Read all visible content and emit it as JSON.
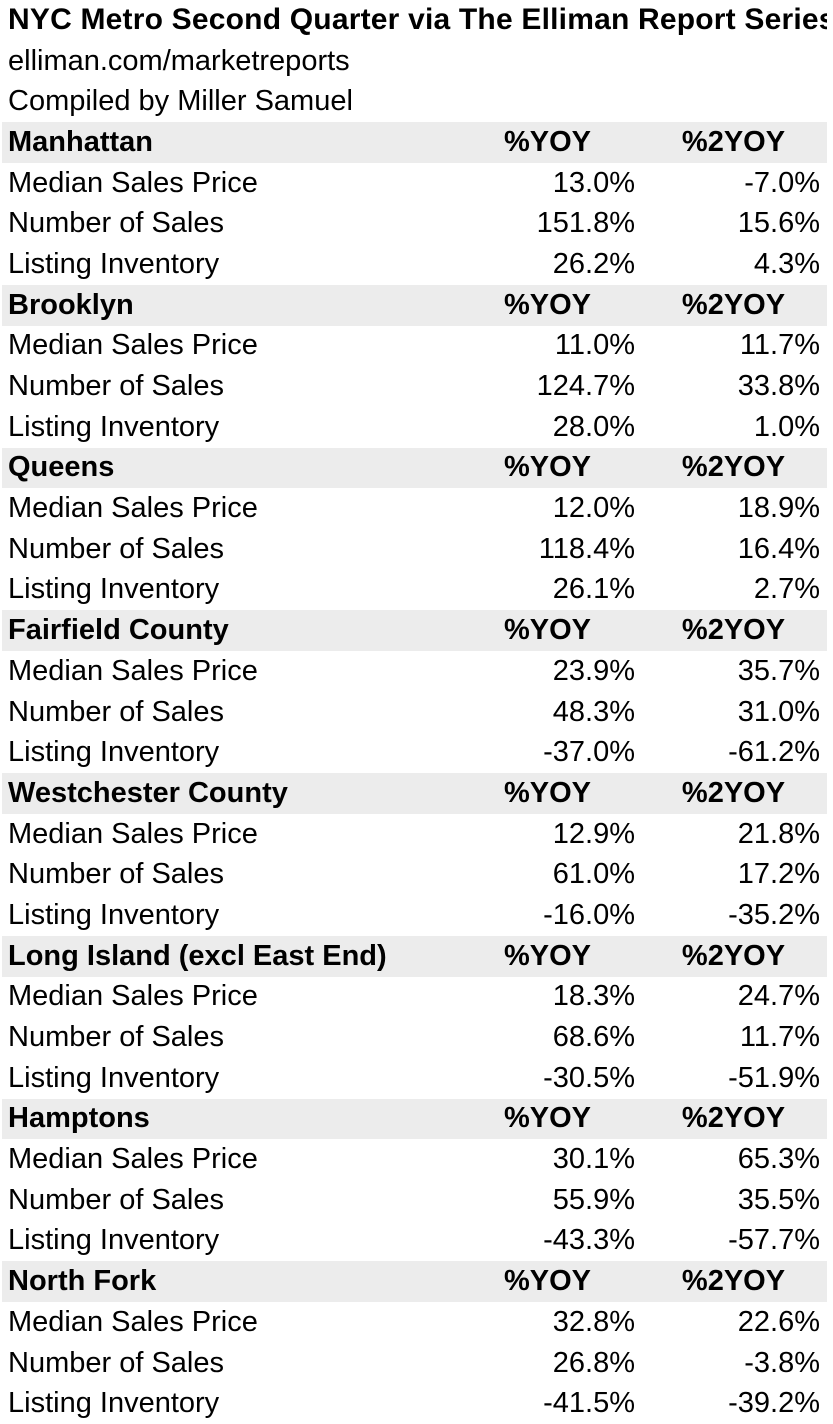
{
  "header": {
    "title": "NYC Metro Second Quarter via The Elliman Report Series",
    "source": "elliman.com/marketreports",
    "compiled": "Compiled by Miller Samuel"
  },
  "columns": {
    "yoy": "%YOY",
    "yoy2": "%2YOY"
  },
  "colors": {
    "section_header_bg": "#ececec",
    "text": "#000000",
    "page_bg": "#ffffff"
  },
  "sections": [
    {
      "region": "Manhattan",
      "rows": [
        {
          "label": "Median Sales Price",
          "yoy": "13.0%",
          "yoy2": "-7.0%"
        },
        {
          "label": "Number of Sales",
          "yoy": "151.8%",
          "yoy2": "15.6%"
        },
        {
          "label": "Listing Inventory",
          "yoy": "26.2%",
          "yoy2": "4.3%"
        }
      ]
    },
    {
      "region": "Brooklyn",
      "rows": [
        {
          "label": "Median Sales Price",
          "yoy": "11.0%",
          "yoy2": "11.7%"
        },
        {
          "label": "Number of Sales",
          "yoy": "124.7%",
          "yoy2": "33.8%"
        },
        {
          "label": "Listing Inventory",
          "yoy": "28.0%",
          "yoy2": "1.0%"
        }
      ]
    },
    {
      "region": "Queens",
      "rows": [
        {
          "label": "Median Sales Price",
          "yoy": "12.0%",
          "yoy2": "18.9%"
        },
        {
          "label": "Number of Sales",
          "yoy": "118.4%",
          "yoy2": "16.4%"
        },
        {
          "label": "Listing Inventory",
          "yoy": "26.1%",
          "yoy2": "2.7%"
        }
      ]
    },
    {
      "region": "Fairfield County",
      "rows": [
        {
          "label": "Median Sales Price",
          "yoy": "23.9%",
          "yoy2": "35.7%"
        },
        {
          "label": "Number of Sales",
          "yoy": "48.3%",
          "yoy2": "31.0%"
        },
        {
          "label": "Listing Inventory",
          "yoy": "-37.0%",
          "yoy2": "-61.2%"
        }
      ]
    },
    {
      "region": "Westchester County",
      "rows": [
        {
          "label": "Median Sales Price",
          "yoy": "12.9%",
          "yoy2": "21.8%"
        },
        {
          "label": "Number of Sales",
          "yoy": "61.0%",
          "yoy2": "17.2%"
        },
        {
          "label": "Listing Inventory",
          "yoy": "-16.0%",
          "yoy2": "-35.2%"
        }
      ]
    },
    {
      "region": "Long Island (excl East End)",
      "rows": [
        {
          "label": "Median Sales Price",
          "yoy": "18.3%",
          "yoy2": "24.7%"
        },
        {
          "label": "Number of Sales",
          "yoy": "68.6%",
          "yoy2": "11.7%"
        },
        {
          "label": "Listing Inventory",
          "yoy": "-30.5%",
          "yoy2": "-51.9%"
        }
      ]
    },
    {
      "region": "Hamptons",
      "rows": [
        {
          "label": "Median Sales Price",
          "yoy": "30.1%",
          "yoy2": "65.3%"
        },
        {
          "label": "Number of Sales",
          "yoy": "55.9%",
          "yoy2": "35.5%"
        },
        {
          "label": "Listing Inventory",
          "yoy": "-43.3%",
          "yoy2": "-57.7%"
        }
      ]
    },
    {
      "region": "North Fork",
      "rows": [
        {
          "label": "Median Sales Price",
          "yoy": "32.8%",
          "yoy2": "22.6%"
        },
        {
          "label": "Number of Sales",
          "yoy": "26.8%",
          "yoy2": "-3.8%"
        },
        {
          "label": "Listing Inventory",
          "yoy": "-41.5%",
          "yoy2": "-39.2%"
        }
      ]
    }
  ]
}
